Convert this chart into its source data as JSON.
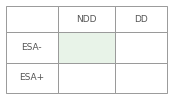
{
  "col_labels": [
    "",
    "NDD",
    "DD"
  ],
  "row_labels": [
    "ESA-",
    "ESA+"
  ],
  "highlight_cell": [
    1,
    1
  ],
  "highlight_color": "#e8f3e8",
  "border_color": "#999999",
  "text_color": "#555555",
  "background_color": "#ffffff",
  "font_size": 6.5
}
